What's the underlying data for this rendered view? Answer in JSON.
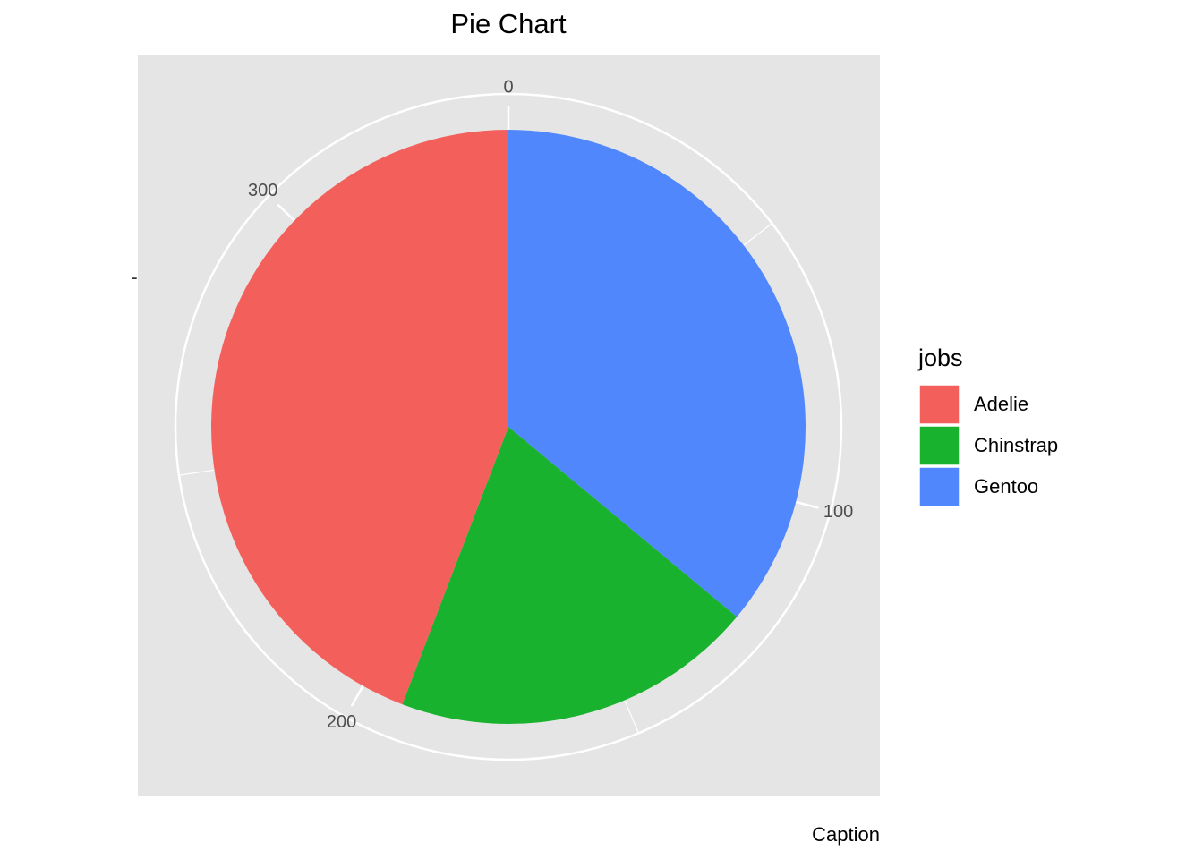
{
  "chart_data": {
    "type": "pie",
    "title": "Pie Chart",
    "caption": "Caption",
    "y_tick_label": "-",
    "legend_title": "jobs",
    "legend_position": "right",
    "categories": [
      "Adelie",
      "Chinstrap",
      "Gentoo"
    ],
    "values": [
      152,
      68,
      124
    ],
    "colors": [
      "#f3605b",
      "#19b22f",
      "#5087fd"
    ],
    "xlim": [
      0,
      344
    ],
    "xticks": [
      0,
      100,
      200,
      300
    ],
    "minor_ticks": [
      50,
      150,
      250
    ],
    "grid": true
  }
}
